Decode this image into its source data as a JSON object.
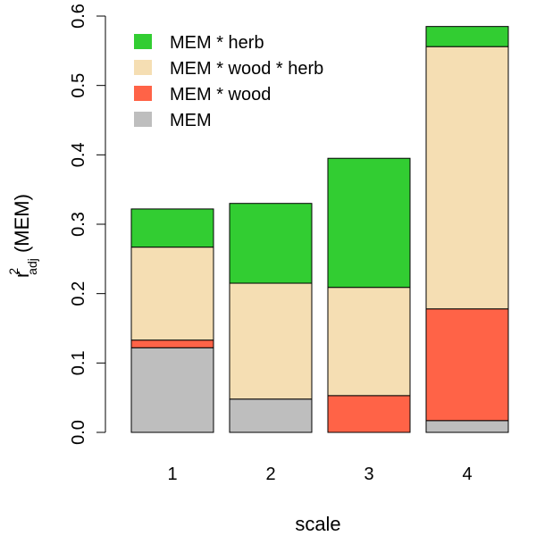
{
  "chart_data": {
    "type": "bar",
    "stacked": true,
    "categories": [
      "1",
      "2",
      "3",
      "4"
    ],
    "series": [
      {
        "name": "MEM",
        "color": "#BEBEBE",
        "values": [
          0.122,
          0.048,
          0.0,
          0.017
        ]
      },
      {
        "name": "MEM * wood",
        "color": "#FF6347",
        "values": [
          0.011,
          0.0,
          0.053,
          0.161
        ]
      },
      {
        "name": "MEM * wood * herb",
        "color": "#F5DEB3",
        "values": [
          0.134,
          0.167,
          0.156,
          0.378
        ]
      },
      {
        "name": "MEM * herb",
        "color": "#32CD32",
        "values": [
          0.055,
          0.115,
          0.186,
          0.029
        ]
      }
    ],
    "legend_order": [
      "MEM * herb",
      "MEM * wood * herb",
      "MEM * wood",
      "MEM"
    ],
    "legend_position": "top-left",
    "xlabel": "scale",
    "ylabel": {
      "base": "r",
      "superscript": "2",
      "subscript": "adj",
      "suffix": " (MEM)"
    },
    "ylim": [
      0,
      0.6
    ],
    "yticks": [
      "0.0",
      "0.1",
      "0.2",
      "0.3",
      "0.4",
      "0.5",
      "0.6"
    ],
    "grid": false
  }
}
